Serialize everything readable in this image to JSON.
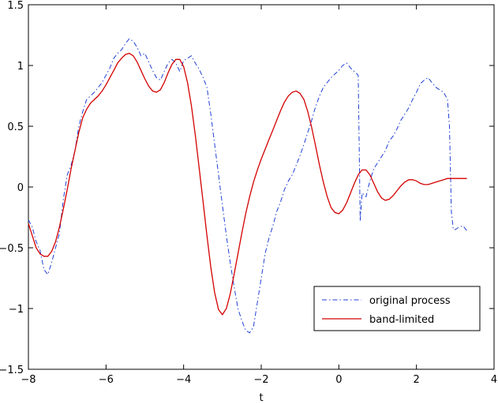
{
  "chart_data": {
    "type": "line",
    "title": "",
    "xlabel": "t",
    "ylabel": "",
    "xlim": [
      -8,
      4
    ],
    "ylim": [
      -1.5,
      1.5
    ],
    "xticks": [
      -8,
      -6,
      -4,
      -2,
      0,
      2,
      4
    ],
    "xtick_labels": [
      "−8",
      "−6",
      "−4",
      "−2",
      "0",
      "2",
      "4"
    ],
    "yticks": [
      -1.5,
      -1,
      -0.5,
      0,
      0.5,
      1,
      1.5
    ],
    "ytick_labels": [
      "−1.5",
      "−1",
      "−0.5",
      "0",
      "0.5",
      "1",
      "1.5"
    ],
    "grid": false,
    "legend_position": "lower-right",
    "series": [
      {
        "name": "original process",
        "color": "#1f3fd6",
        "style": "dash-dot",
        "x": [
          -8.0,
          -7.9,
          -7.8,
          -7.7,
          -7.6,
          -7.5,
          -7.4,
          -7.3,
          -7.2,
          -7.1,
          -7.0,
          -6.9,
          -6.8,
          -6.7,
          -6.6,
          -6.5,
          -6.4,
          -6.3,
          -6.2,
          -6.1,
          -6.0,
          -5.9,
          -5.8,
          -5.7,
          -5.6,
          -5.5,
          -5.4,
          -5.3,
          -5.2,
          -5.1,
          -5.0,
          -4.9,
          -4.8,
          -4.7,
          -4.6,
          -4.5,
          -4.4,
          -4.3,
          -4.2,
          -4.1,
          -4.0,
          -3.9,
          -3.8,
          -3.7,
          -3.6,
          -3.5,
          -3.4,
          -3.3,
          -3.2,
          -3.1,
          -3.0,
          -2.9,
          -2.8,
          -2.7,
          -2.6,
          -2.5,
          -2.4,
          -2.3,
          -2.2,
          -2.1,
          -2.0,
          -1.9,
          -1.8,
          -1.7,
          -1.6,
          -1.5,
          -1.4,
          -1.3,
          -1.2,
          -1.1,
          -1.0,
          -0.9,
          -0.8,
          -0.7,
          -0.6,
          -0.5,
          -0.4,
          -0.3,
          -0.2,
          -0.1,
          0.0,
          0.1,
          0.2,
          0.3,
          0.4,
          0.5,
          0.55,
          0.6,
          0.7,
          0.8,
          0.9,
          1.0,
          1.1,
          1.2,
          1.3,
          1.4,
          1.5,
          1.6,
          1.7,
          1.8,
          1.9,
          2.0,
          2.1,
          2.2,
          2.3,
          2.4,
          2.5,
          2.6,
          2.7,
          2.8,
          2.85,
          2.9,
          2.95,
          3.0,
          3.1,
          3.2,
          3.3
        ],
        "y": [
          -0.27,
          -0.33,
          -0.45,
          -0.52,
          -0.68,
          -0.72,
          -0.62,
          -0.5,
          -0.38,
          -0.1,
          0.1,
          0.18,
          0.3,
          0.5,
          0.62,
          0.72,
          0.75,
          0.78,
          0.82,
          0.86,
          0.92,
          0.98,
          1.06,
          1.1,
          1.13,
          1.18,
          1.22,
          1.2,
          1.15,
          1.08,
          1.1,
          1.03,
          0.96,
          0.9,
          0.88,
          0.95,
          1.02,
          1.05,
          1.02,
          0.95,
          1.04,
          1.06,
          1.08,
          1.02,
          0.97,
          0.9,
          0.82,
          0.6,
          0.35,
          0.1,
          -0.15,
          -0.4,
          -0.62,
          -0.82,
          -1.0,
          -1.1,
          -1.18,
          -1.2,
          -1.15,
          -0.95,
          -0.75,
          -0.55,
          -0.42,
          -0.32,
          -0.2,
          -0.12,
          -0.02,
          0.05,
          0.1,
          0.18,
          0.26,
          0.35,
          0.45,
          0.55,
          0.66,
          0.75,
          0.82,
          0.86,
          0.9,
          0.93,
          0.96,
          1.0,
          1.02,
          0.98,
          0.95,
          0.92,
          -0.28,
          -0.05,
          -0.08,
          0.05,
          0.15,
          0.2,
          0.25,
          0.3,
          0.38,
          0.42,
          0.48,
          0.55,
          0.6,
          0.65,
          0.72,
          0.78,
          0.85,
          0.88,
          0.9,
          0.86,
          0.82,
          0.8,
          0.78,
          0.72,
          0.5,
          -0.2,
          -0.35,
          -0.35,
          -0.33,
          -0.32,
          -0.36
        ]
      },
      {
        "name": "band-limited",
        "color": "#d40000",
        "style": "solid",
        "x": [
          -8.0,
          -7.9,
          -7.8,
          -7.7,
          -7.6,
          -7.5,
          -7.4,
          -7.3,
          -7.2,
          -7.1,
          -7.0,
          -6.9,
          -6.8,
          -6.7,
          -6.6,
          -6.5,
          -6.4,
          -6.3,
          -6.2,
          -6.1,
          -6.0,
          -5.9,
          -5.8,
          -5.7,
          -5.6,
          -5.5,
          -5.4,
          -5.3,
          -5.2,
          -5.1,
          -5.0,
          -4.9,
          -4.8,
          -4.7,
          -4.6,
          -4.5,
          -4.4,
          -4.3,
          -4.2,
          -4.1,
          -4.0,
          -3.9,
          -3.8,
          -3.7,
          -3.6,
          -3.5,
          -3.4,
          -3.3,
          -3.2,
          -3.1,
          -3.0,
          -2.9,
          -2.8,
          -2.7,
          -2.6,
          -2.5,
          -2.4,
          -2.3,
          -2.2,
          -2.1,
          -2.0,
          -1.9,
          -1.8,
          -1.7,
          -1.6,
          -1.5,
          -1.4,
          -1.3,
          -1.2,
          -1.1,
          -1.0,
          -0.9,
          -0.8,
          -0.7,
          -0.6,
          -0.5,
          -0.4,
          -0.3,
          -0.2,
          -0.1,
          0.0,
          0.1,
          0.2,
          0.3,
          0.4,
          0.5,
          0.6,
          0.7,
          0.8,
          0.9,
          1.0,
          1.1,
          1.2,
          1.3,
          1.4,
          1.5,
          1.6,
          1.7,
          1.8,
          1.9,
          2.0,
          2.1,
          2.2,
          2.3,
          2.4,
          2.5,
          2.6,
          2.7,
          2.8,
          2.9,
          3.0,
          3.1,
          3.2,
          3.3
        ],
        "y": [
          -0.3,
          -0.4,
          -0.5,
          -0.55,
          -0.57,
          -0.57,
          -0.53,
          -0.45,
          -0.33,
          -0.18,
          -0.02,
          0.15,
          0.3,
          0.45,
          0.57,
          0.64,
          0.69,
          0.72,
          0.75,
          0.79,
          0.84,
          0.9,
          0.96,
          1.02,
          1.06,
          1.09,
          1.1,
          1.08,
          1.03,
          0.96,
          0.89,
          0.83,
          0.79,
          0.78,
          0.8,
          0.86,
          0.94,
          1.01,
          1.05,
          1.05,
          0.99,
          0.86,
          0.67,
          0.43,
          0.16,
          -0.12,
          -0.4,
          -0.66,
          -0.87,
          -1.01,
          -1.05,
          -1.0,
          -0.88,
          -0.72,
          -0.55,
          -0.38,
          -0.22,
          -0.08,
          0.04,
          0.14,
          0.23,
          0.31,
          0.39,
          0.47,
          0.55,
          0.63,
          0.7,
          0.75,
          0.78,
          0.79,
          0.77,
          0.72,
          0.62,
          0.49,
          0.34,
          0.18,
          0.04,
          -0.08,
          -0.17,
          -0.21,
          -0.22,
          -0.19,
          -0.13,
          -0.05,
          0.03,
          0.1,
          0.14,
          0.14,
          0.1,
          0.03,
          -0.04,
          -0.09,
          -0.11,
          -0.1,
          -0.07,
          -0.03,
          0.01,
          0.04,
          0.06,
          0.06,
          0.05,
          0.03,
          0.02,
          0.02,
          0.03,
          0.04,
          0.05,
          0.06,
          0.07,
          0.07,
          0.07,
          0.07,
          0.07,
          0.07
        ]
      }
    ]
  }
}
